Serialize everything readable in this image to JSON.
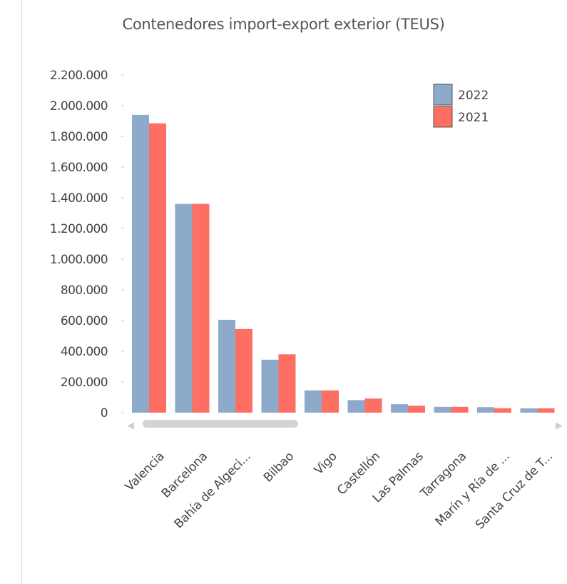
{
  "chart_data": {
    "type": "bar",
    "title": "Contenedores import-export exterior (TEUS)",
    "xlabel": "",
    "ylabel": "",
    "ylim": [
      0,
      2200000
    ],
    "yticks": [
      0,
      200000,
      400000,
      600000,
      800000,
      1000000,
      1200000,
      1400000,
      1600000,
      1800000,
      2000000,
      2200000
    ],
    "ytick_labels": [
      "0",
      "200.000",
      "400.000",
      "600.000",
      "800.000",
      "1.000.000",
      "1.200.000",
      "1.400.000",
      "1.600.000",
      "1.800.000",
      "2.000.000",
      "2.200.000"
    ],
    "categories": [
      "Valencia",
      "Barcelona",
      "Bahía de Algeci...",
      "Bilbao",
      "Vigo",
      "Castellón",
      "Las Palmas",
      "Tarragona",
      "Marín y Ría de ...",
      "Santa Cruz de T..."
    ],
    "series": [
      {
        "name": "2022",
        "color": "#8eaacb",
        "values": [
          1940000,
          1360000,
          605000,
          345000,
          145000,
          82000,
          55000,
          38000,
          36000,
          28000
        ]
      },
      {
        "name": "2021",
        "color": "#fd6f62",
        "values": [
          1885000,
          1360000,
          545000,
          380000,
          145000,
          92000,
          45000,
          38000,
          29000,
          28000
        ]
      }
    ],
    "legend_position": "top-right",
    "grid": false
  },
  "scrollbar": {
    "left_arrow": "◀",
    "right_arrow": "▶"
  }
}
